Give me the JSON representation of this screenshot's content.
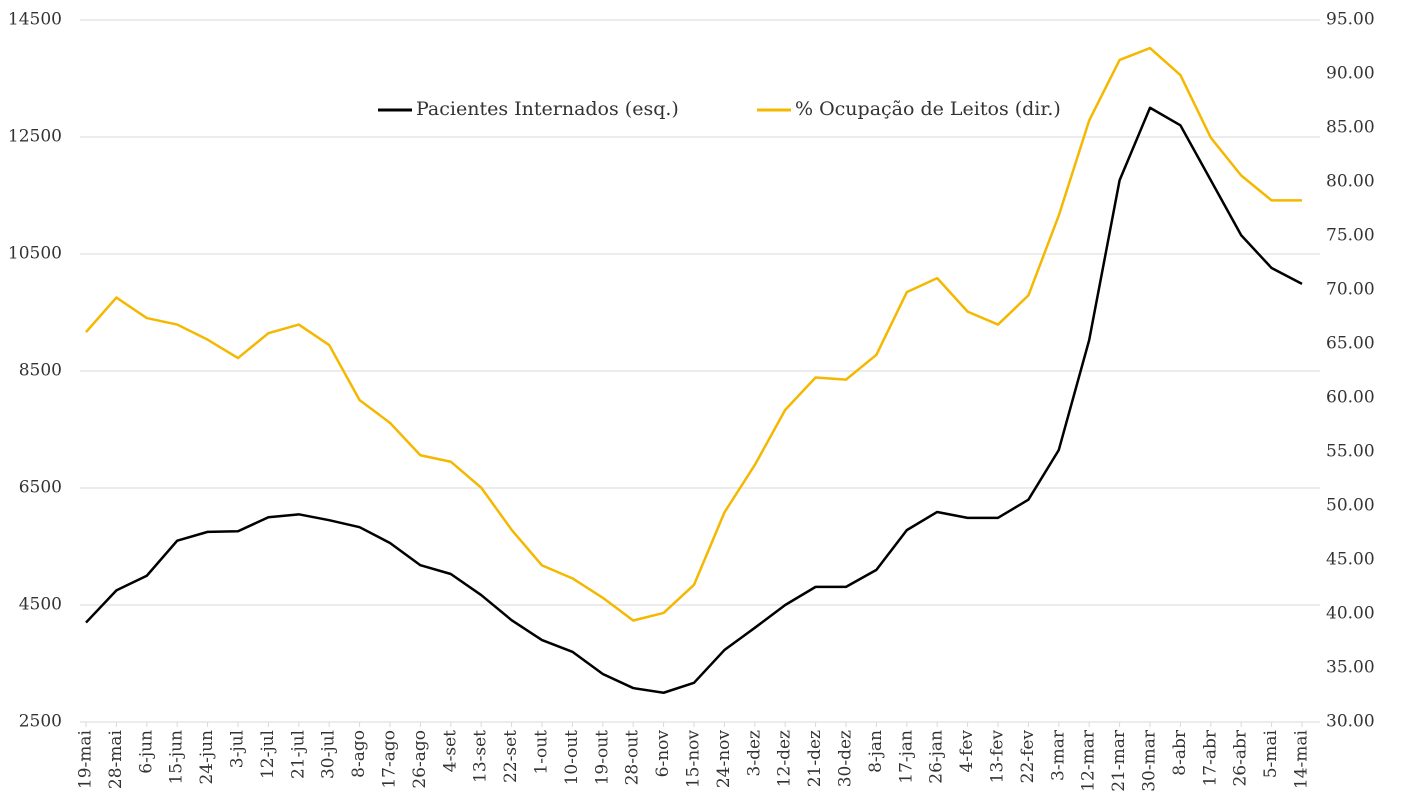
{
  "chart_data": {
    "type": "line",
    "categories": [
      "19-mai",
      "28-mai",
      "6-jun",
      "15-jun",
      "24-jun",
      "3-jul",
      "12-jul",
      "21-jul",
      "30-jul",
      "8-ago",
      "17-ago",
      "26-ago",
      "4-set",
      "13-set",
      "22-set",
      "1-out",
      "10-out",
      "19-out",
      "28-out",
      "6-nov",
      "15-nov",
      "24-nov",
      "3-dez",
      "12-dez",
      "21-dez",
      "30-dez",
      "8-jan",
      "17-jan",
      "26-jan",
      "4-fev",
      "13-fev",
      "22-fev",
      "3-mar",
      "12-mar",
      "21-mar",
      "30-mar",
      "8-abr",
      "17-abr",
      "26-abr",
      "5-mai",
      "14-mai"
    ],
    "series": [
      {
        "name": "Pacientes Internados (esq.)",
        "color": "#000000",
        "values": [
          4200,
          4750,
          5000,
          5600,
          5750,
          5760,
          6000,
          6050,
          5950,
          5830,
          5560,
          5180,
          5030,
          4670,
          4240,
          3900,
          3700,
          3320,
          3080,
          3000,
          3170,
          3730,
          4110,
          4500,
          4810,
          4810,
          5100,
          5780,
          6090,
          5990,
          5990,
          6300,
          7150,
          9030,
          11760,
          13000,
          12700,
          11760,
          10820,
          10260,
          9990
        ]
      },
      {
        "name": "% Ocupação de Leitos (dir.)",
        "color": "#f5b800",
        "axis": "y2",
        "values": [
          66.1,
          69.3,
          67.4,
          66.8,
          65.4,
          63.7,
          66.0,
          66.8,
          64.9,
          59.8,
          57.7,
          54.7,
          54.1,
          51.7,
          47.8,
          44.5,
          43.3,
          41.5,
          39.4,
          40.1,
          42.7,
          49.4,
          53.8,
          58.9,
          61.9,
          61.7,
          64.0,
          69.8,
          71.1,
          68.0,
          66.8,
          69.5,
          76.9,
          85.7,
          91.3,
          92.4,
          89.9,
          84.1,
          80.6,
          78.3,
          78.3
        ]
      }
    ],
    "ylim": [
      2500,
      14500
    ],
    "yticks": [
      2500,
      4500,
      6500,
      8500,
      10500,
      12500,
      14500
    ],
    "y2lim": [
      30,
      95
    ],
    "y2ticks": [
      {
        "value": 30,
        "label": "30.00"
      },
      {
        "value": 35,
        "label": "35.00"
      },
      {
        "value": 40,
        "label": "40.00"
      },
      {
        "value": 45,
        "label": "45.00"
      },
      {
        "value": 50,
        "label": "50.00"
      },
      {
        "value": 55,
        "label": "55.00"
      },
      {
        "value": 60,
        "label": "60.00"
      },
      {
        "value": 65,
        "label": "65.00"
      },
      {
        "value": 70,
        "label": "70.00"
      },
      {
        "value": 75,
        "label": "75.00"
      },
      {
        "value": 80,
        "label": "80.00"
      },
      {
        "value": 85,
        "label": "85.00"
      },
      {
        "value": 90,
        "label": "90.00"
      },
      {
        "value": 95,
        "label": "95.00"
      }
    ],
    "grid": true,
    "legend": "top"
  }
}
